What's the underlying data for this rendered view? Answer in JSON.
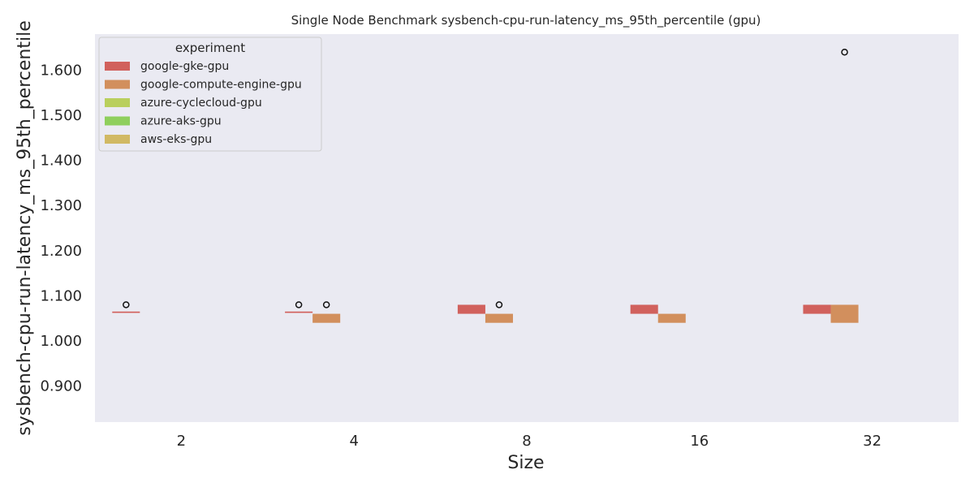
{
  "chart_data": {
    "type": "box",
    "title": "Single Node Benchmark sysbench-cpu-run-latency_ms_95th_percentile (gpu)",
    "xlabel": "Size",
    "ylabel": "sysbench-cpu-run-latency_ms_95th_percentile",
    "categories": [
      "2",
      "4",
      "8",
      "16",
      "32"
    ],
    "ylim": [
      0.82,
      1.68
    ],
    "yticks": [
      0.9,
      1.0,
      1.1,
      1.2,
      1.3,
      1.4,
      1.5,
      1.6
    ],
    "ytick_labels": [
      "0.900",
      "1.000",
      "1.100",
      "1.200",
      "1.300",
      "1.400",
      "1.500",
      "1.600"
    ],
    "grid": false,
    "legend": {
      "title": "experiment",
      "placement": "top-left"
    },
    "series": [
      {
        "name": "google-gke-gpu",
        "color": "#d1615d",
        "boxes": [
          {
            "category": "2",
            "q1": 1.062,
            "q3": 1.065,
            "outliers": [
              1.08
            ]
          },
          {
            "category": "4",
            "q1": 1.062,
            "q3": 1.065,
            "outliers": [
              1.08
            ]
          },
          {
            "category": "8",
            "q1": 1.06,
            "q3": 1.08,
            "outliers": []
          },
          {
            "category": "16",
            "q1": 1.06,
            "q3": 1.08,
            "outliers": []
          },
          {
            "category": "32",
            "q1": 1.06,
            "q3": 1.08,
            "outliers": []
          }
        ]
      },
      {
        "name": "google-compute-engine-gpu",
        "color": "#d28f5d",
        "boxes": [
          {
            "category": "4",
            "q1": 1.04,
            "q3": 1.06,
            "outliers": [
              1.08
            ]
          },
          {
            "category": "8",
            "q1": 1.04,
            "q3": 1.06,
            "outliers": [
              1.08
            ]
          },
          {
            "category": "16",
            "q1": 1.04,
            "q3": 1.06,
            "outliers": []
          },
          {
            "category": "32",
            "q1": 1.04,
            "q3": 1.08,
            "outliers": [
              1.64
            ]
          }
        ]
      },
      {
        "name": "azure-cyclecloud-gpu",
        "color": "#b9cf5d",
        "boxes": []
      },
      {
        "name": "azure-aks-gpu",
        "color": "#8fcf5d",
        "boxes": []
      },
      {
        "name": "aws-eks-gpu",
        "color": "#d1b964",
        "boxes": []
      }
    ]
  }
}
